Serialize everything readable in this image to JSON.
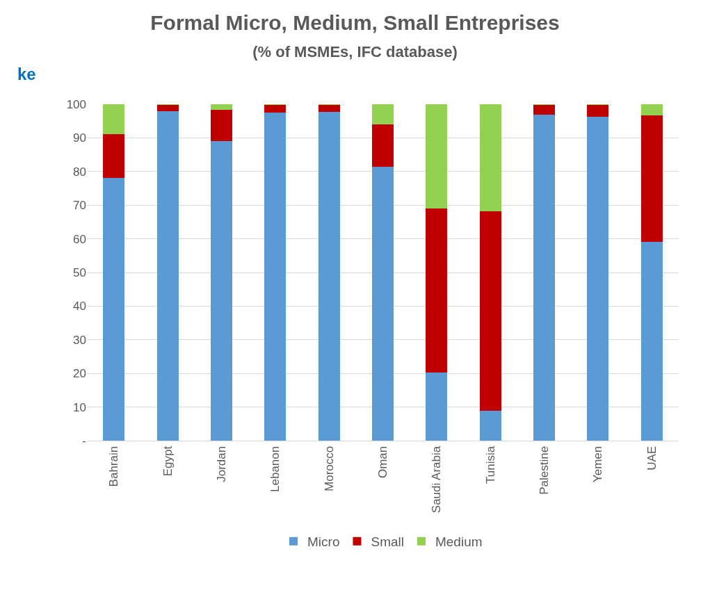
{
  "chart_data": {
    "type": "bar",
    "title": "Formal Micro, Medium, Small Entreprises",
    "subtitle": "(% of MSMEs, IFC database)",
    "annotations": [
      "ke"
    ],
    "categories": [
      "Bahrain",
      "Egypt",
      "Jordan",
      "Lebanon",
      "Morocco",
      "Oman",
      "Saudi Arabia",
      "Tunisia",
      "Palestine",
      "Yemen",
      "UAE"
    ],
    "series": [
      {
        "name": "Micro",
        "color": "#5b9bd5",
        "values": [
          78.2,
          98.0,
          89.1,
          97.5,
          97.7,
          81.4,
          20.3,
          8.8,
          96.9,
          96.3,
          59.0
        ]
      },
      {
        "name": "Small",
        "color": "#c00000",
        "values": [
          13.0,
          1.9,
          9.2,
          2.3,
          2.1,
          12.6,
          48.8,
          59.4,
          3.0,
          3.6,
          37.6
        ]
      },
      {
        "name": "Medium",
        "color": "#92d050",
        "values": [
          8.8,
          0.1,
          1.7,
          0.2,
          0.2,
          6.0,
          30.9,
          31.8,
          0.1,
          0.1,
          3.4
        ]
      }
    ],
    "stacked": true,
    "ylim": [
      0,
      100
    ],
    "yticks": [
      {
        "value": 0,
        "label": "-"
      },
      10,
      20,
      30,
      40,
      50,
      60,
      70,
      80,
      90,
      100
    ],
    "grid": "y",
    "legend": "bottom"
  }
}
